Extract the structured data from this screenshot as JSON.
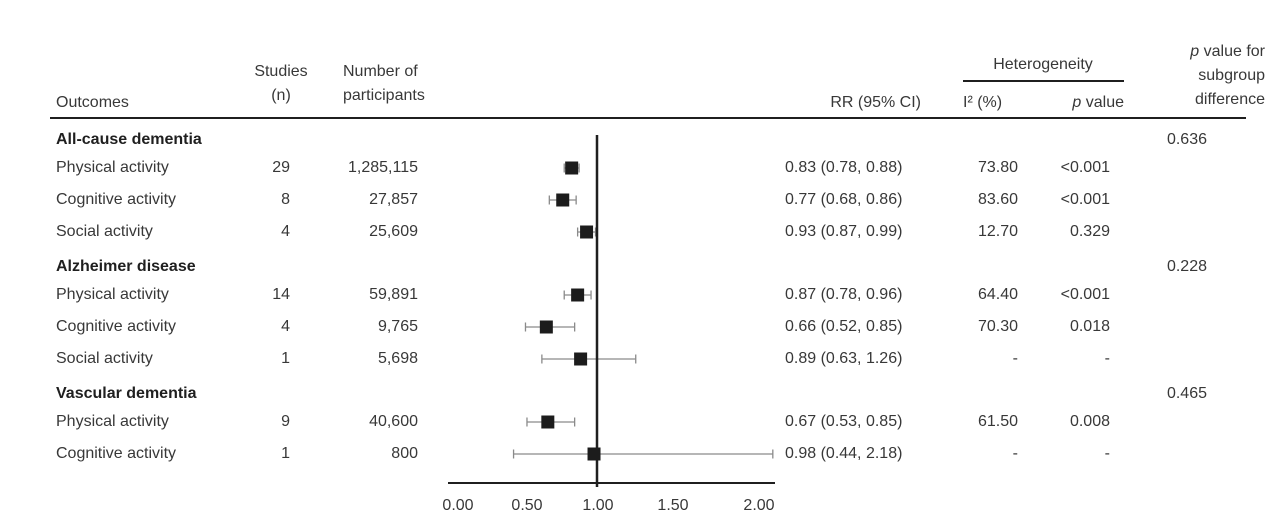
{
  "header": {
    "outcomes": "Outcomes",
    "studies_line1": "Studies",
    "studies_line2": "(n)",
    "participants_line1": "Number of",
    "participants_line2": "participants",
    "rr": "RR (95% CI)",
    "heterogeneity": "Heterogeneity",
    "i2": "I² (%)",
    "p_value": "p value",
    "subgroup_line1": "p value for",
    "subgroup_line2": "subgroup",
    "subgroup_line3": "difference"
  },
  "colors": {
    "text": "#383838",
    "bold_text": "#1f1f1f",
    "line": "#1f1f1f",
    "whisker": "#8a8a8a",
    "marker": "#1c1c1c",
    "background": "#ffffff"
  },
  "chart_data": {
    "type": "forest",
    "x_axis": {
      "tick_labels": [
        "0.00",
        "0.50",
        "1.00",
        "1.50",
        "2.00"
      ],
      "tick_values": [
        0,
        0.5,
        1,
        1.5,
        2
      ],
      "range": [
        0,
        2.2
      ],
      "reference_line": 1.0
    },
    "groups": [
      {
        "name": "All-cause dementia",
        "p_subgroup": "0.636",
        "rows": [
          {
            "outcome": "Physical activity",
            "studies": "29",
            "participants": "1,285,115",
            "rr": 0.83,
            "ci_low": 0.78,
            "ci_high": 0.88,
            "rr_text": "0.83 (0.78, 0.88)",
            "i2": "73.80",
            "p": "<0.001"
          },
          {
            "outcome": "Cognitive activity",
            "studies": "8",
            "participants": "27,857",
            "rr": 0.77,
            "ci_low": 0.68,
            "ci_high": 0.86,
            "rr_text": "0.77 (0.68, 0.86)",
            "i2": "83.60",
            "p": "<0.001"
          },
          {
            "outcome": "Social activity",
            "studies": "4",
            "participants": "25,609",
            "rr": 0.93,
            "ci_low": 0.87,
            "ci_high": 0.99,
            "rr_text": "0.93 (0.87, 0.99)",
            "i2": "12.70",
            "p": "0.329"
          }
        ]
      },
      {
        "name": "Alzheimer disease",
        "p_subgroup": "0.228",
        "rows": [
          {
            "outcome": "Physical activity",
            "studies": "14",
            "participants": "59,891",
            "rr": 0.87,
            "ci_low": 0.78,
            "ci_high": 0.96,
            "rr_text": "0.87 (0.78, 0.96)",
            "i2": "64.40",
            "p": "<0.001"
          },
          {
            "outcome": "Cognitive activity",
            "studies": "4",
            "participants": "9,765",
            "rr": 0.66,
            "ci_low": 0.52,
            "ci_high": 0.85,
            "rr_text": "0.66 (0.52, 0.85)",
            "i2": "70.30",
            "p": "0.018"
          },
          {
            "outcome": "Social activity",
            "studies": "1",
            "participants": "5,698",
            "rr": 0.89,
            "ci_low": 0.63,
            "ci_high": 1.26,
            "rr_text": "0.89 (0.63, 1.26)",
            "i2": "-",
            "p": "-"
          }
        ]
      },
      {
        "name": "Vascular dementia",
        "p_subgroup": "0.465",
        "rows": [
          {
            "outcome": "Physical activity",
            "studies": "9",
            "participants": "40,600",
            "rr": 0.67,
            "ci_low": 0.53,
            "ci_high": 0.85,
            "rr_text": "0.67 (0.53, 0.85)",
            "i2": "61.50",
            "p": "0.008"
          },
          {
            "outcome": "Cognitive activity",
            "studies": "1",
            "participants": "800",
            "rr": 0.98,
            "ci_low": 0.44,
            "ci_high": 2.18,
            "rr_text": "0.98 (0.44, 2.18)",
            "i2": "-",
            "p": "-"
          }
        ]
      }
    ]
  }
}
